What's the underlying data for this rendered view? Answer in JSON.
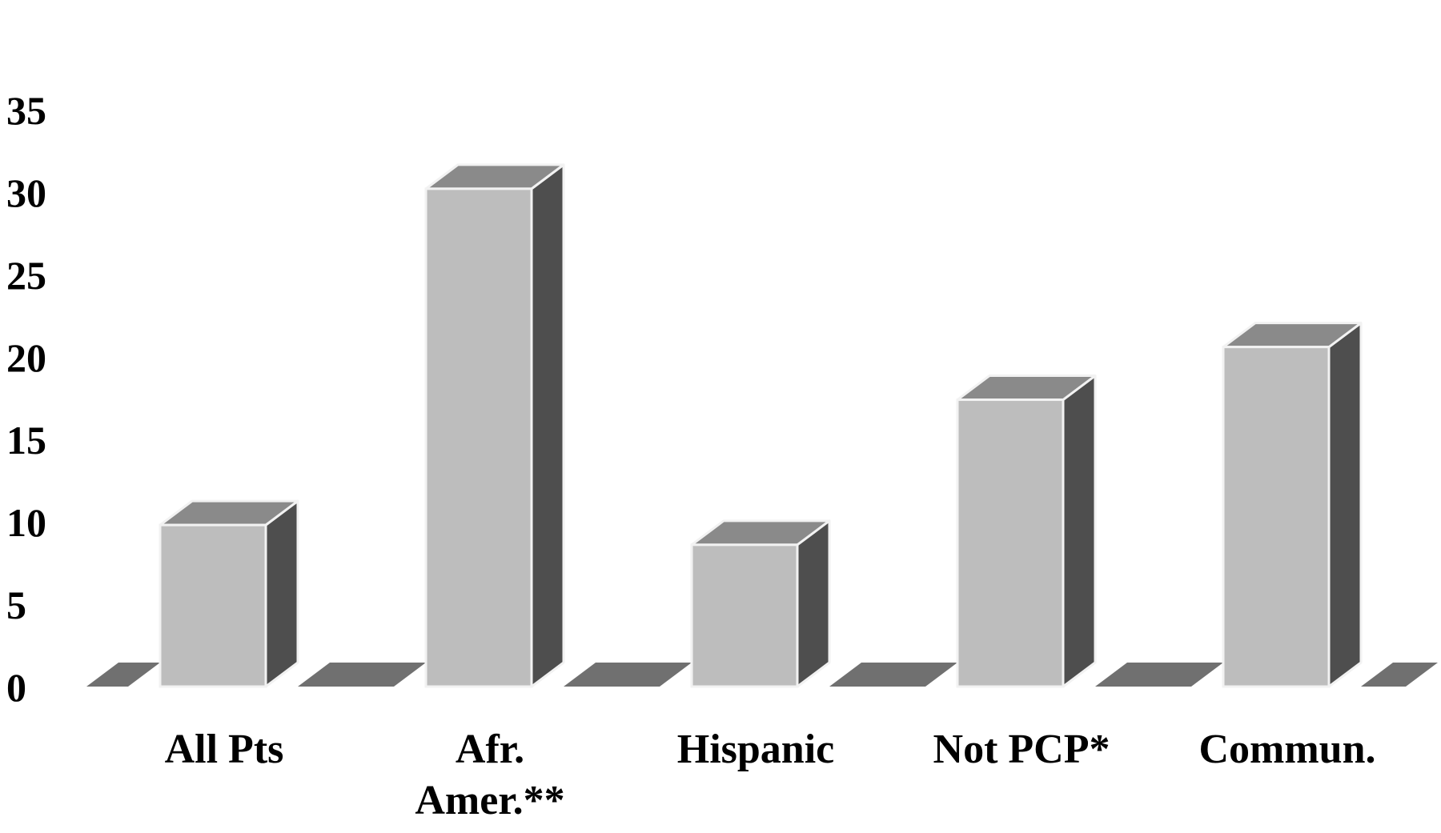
{
  "chart_data": {
    "type": "bar",
    "categories": [
      [
        "All Pts"
      ],
      [
        "Afr.",
        "Amer.**"
      ],
      [
        "Hispanic"
      ],
      [
        "Not PCP*"
      ],
      [
        "Commun."
      ]
    ],
    "values": [
      9.8,
      30.2,
      8.6,
      17.4,
      20.6
    ],
    "ylim": [
      0,
      35
    ],
    "yticks": [
      0,
      5,
      10,
      15,
      20,
      25,
      30,
      35
    ],
    "grid": false,
    "legend": "none",
    "colors": {
      "bar_front": "#bdbdbd",
      "bar_side": "#4e4e4e",
      "bar_top": "#8a8a8a",
      "bar_edge": "#f2f2f2",
      "floor": "#707070"
    }
  }
}
